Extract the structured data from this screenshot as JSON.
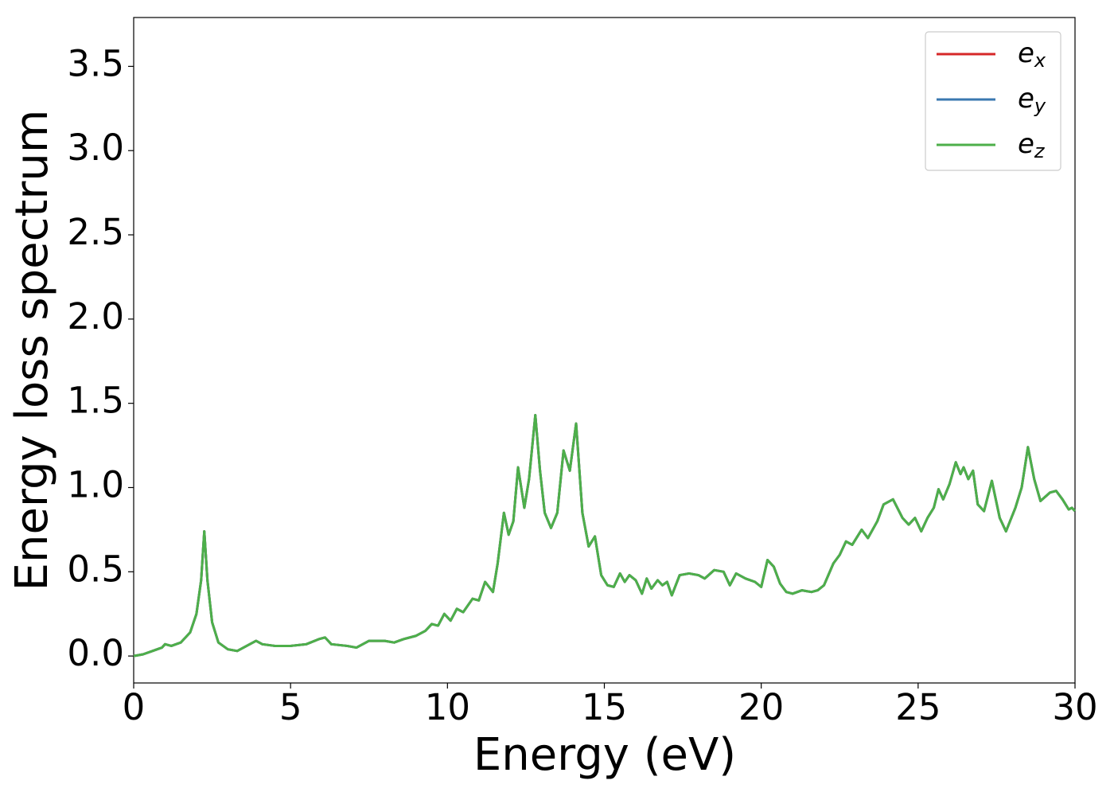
{
  "chart_data": {
    "type": "line",
    "x_label": "Energy (eV)",
    "y_label": "Energy loss spectrum",
    "xlim": [
      0,
      30
    ],
    "ylim": [
      -0.16,
      3.79
    ],
    "xticks": [
      0,
      5,
      10,
      15,
      20,
      25,
      30
    ],
    "yticks": [
      {
        "value": 0,
        "label": "0.0"
      },
      0.5,
      {
        "value": 1,
        "label": "1.0"
      },
      1.5,
      {
        "value": 2,
        "label": "2.0"
      },
      2.5,
      {
        "value": 3,
        "label": "3.0"
      },
      3.5
    ],
    "legend": "upper right",
    "x": [
      0,
      0.3,
      0.6,
      0.9,
      1.0,
      1.2,
      1.5,
      1.8,
      2.0,
      2.15,
      2.25,
      2.35,
      2.5,
      2.7,
      3.0,
      3.3,
      3.6,
      3.9,
      4.1,
      4.5,
      5.0,
      5.5,
      5.9,
      6.1,
      6.3,
      6.8,
      7.1,
      7.5,
      8.0,
      8.3,
      8.6,
      9.0,
      9.3,
      9.5,
      9.7,
      9.9,
      10.1,
      10.3,
      10.5,
      10.8,
      11.0,
      11.2,
      11.45,
      11.6,
      11.8,
      11.95,
      12.1,
      12.25,
      12.45,
      12.6,
      12.8,
      12.95,
      13.1,
      13.3,
      13.5,
      13.7,
      13.9,
      14.1,
      14.3,
      14.5,
      14.7,
      14.9,
      15.1,
      15.3,
      15.5,
      15.65,
      15.8,
      16.0,
      16.2,
      16.35,
      16.5,
      16.7,
      16.85,
      17.0,
      17.15,
      17.4,
      17.7,
      18.0,
      18.2,
      18.5,
      18.8,
      19.0,
      19.2,
      19.5,
      19.8,
      20.0,
      20.2,
      20.4,
      20.6,
      20.8,
      21.0,
      21.3,
      21.6,
      21.8,
      22.0,
      22.3,
      22.5,
      22.7,
      22.9,
      23.2,
      23.4,
      23.7,
      23.9,
      24.2,
      24.5,
      24.7,
      24.9,
      25.1,
      25.3,
      25.5,
      25.65,
      25.8,
      26.0,
      26.2,
      26.35,
      26.45,
      26.6,
      26.75,
      26.9,
      27.1,
      27.35,
      27.6,
      27.8,
      28.1,
      28.3,
      28.5,
      28.7,
      28.9,
      29.2,
      29.4,
      29.6,
      29.8,
      29.9,
      30.0
    ],
    "series": [
      {
        "name": "ex",
        "color": "#d62728",
        "values": [
          0.0,
          0.01,
          0.03,
          0.05,
          0.07,
          0.06,
          0.08,
          0.14,
          0.25,
          0.45,
          0.74,
          0.45,
          0.2,
          0.08,
          0.04,
          0.03,
          0.06,
          0.09,
          0.07,
          0.06,
          0.06,
          0.07,
          0.1,
          0.11,
          0.07,
          0.06,
          0.05,
          0.09,
          0.09,
          0.08,
          0.1,
          0.12,
          0.15,
          0.19,
          0.18,
          0.25,
          0.21,
          0.28,
          0.26,
          0.34,
          0.33,
          0.44,
          0.38,
          0.55,
          0.85,
          0.72,
          0.8,
          1.12,
          0.88,
          1.05,
          1.43,
          1.1,
          0.85,
          0.76,
          0.85,
          1.22,
          1.1,
          1.38,
          0.85,
          0.65,
          0.71,
          0.48,
          0.42,
          0.41,
          0.49,
          0.44,
          0.48,
          0.45,
          0.37,
          0.46,
          0.4,
          0.45,
          0.42,
          0.44,
          0.36,
          0.48,
          0.49,
          0.48,
          0.46,
          0.51,
          0.5,
          0.42,
          0.49,
          0.46,
          0.44,
          0.41,
          0.57,
          0.53,
          0.43,
          0.38,
          0.37,
          0.39,
          0.38,
          0.39,
          0.42,
          0.55,
          0.6,
          0.68,
          0.66,
          0.75,
          0.7,
          0.8,
          0.9,
          0.93,
          0.82,
          0.78,
          0.82,
          0.74,
          0.82,
          0.88,
          0.99,
          0.93,
          1.02,
          1.15,
          1.08,
          1.12,
          1.05,
          1.1,
          0.9,
          0.86,
          1.04,
          0.82,
          0.74,
          0.88,
          1.0,
          1.24,
          1.05,
          0.92,
          0.97,
          0.98,
          0.93,
          0.87,
          0.88,
          0.86
        ]
      },
      {
        "name": "ey",
        "color": "#3a78b0",
        "values": [
          0.0,
          0.01,
          0.03,
          0.05,
          0.07,
          0.06,
          0.08,
          0.14,
          0.25,
          0.45,
          0.74,
          0.45,
          0.2,
          0.08,
          0.04,
          0.03,
          0.06,
          0.09,
          0.07,
          0.06,
          0.06,
          0.07,
          0.1,
          0.11,
          0.07,
          0.06,
          0.05,
          0.09,
          0.09,
          0.08,
          0.1,
          0.12,
          0.15,
          0.19,
          0.18,
          0.25,
          0.21,
          0.28,
          0.26,
          0.34,
          0.33,
          0.44,
          0.38,
          0.55,
          0.85,
          0.72,
          0.8,
          1.12,
          0.88,
          1.05,
          1.43,
          1.1,
          0.85,
          0.76,
          0.85,
          1.22,
          1.1,
          1.38,
          0.85,
          0.65,
          0.71,
          0.48,
          0.42,
          0.41,
          0.49,
          0.44,
          0.48,
          0.45,
          0.37,
          0.46,
          0.4,
          0.45,
          0.42,
          0.44,
          0.36,
          0.48,
          0.49,
          0.48,
          0.46,
          0.51,
          0.5,
          0.42,
          0.49,
          0.46,
          0.44,
          0.41,
          0.57,
          0.53,
          0.43,
          0.38,
          0.37,
          0.39,
          0.38,
          0.39,
          0.42,
          0.55,
          0.6,
          0.68,
          0.66,
          0.75,
          0.7,
          0.8,
          0.9,
          0.93,
          0.82,
          0.78,
          0.82,
          0.74,
          0.82,
          0.88,
          0.99,
          0.93,
          1.02,
          1.15,
          1.08,
          1.12,
          1.05,
          1.1,
          0.9,
          0.86,
          1.04,
          0.82,
          0.74,
          0.88,
          1.0,
          1.24,
          1.05,
          0.92,
          0.97,
          0.98,
          0.93,
          0.87,
          0.88,
          0.86
        ]
      },
      {
        "name": "ez",
        "color": "#4daf4a",
        "values": [
          0.0,
          0.01,
          0.03,
          0.05,
          0.07,
          0.06,
          0.08,
          0.14,
          0.25,
          0.45,
          0.74,
          0.45,
          0.2,
          0.08,
          0.04,
          0.03,
          0.06,
          0.09,
          0.07,
          0.06,
          0.06,
          0.07,
          0.1,
          0.11,
          0.07,
          0.06,
          0.05,
          0.09,
          0.09,
          0.08,
          0.1,
          0.12,
          0.15,
          0.19,
          0.18,
          0.25,
          0.21,
          0.28,
          0.26,
          0.34,
          0.33,
          0.44,
          0.38,
          0.55,
          0.85,
          0.72,
          0.8,
          1.12,
          0.88,
          1.05,
          1.43,
          1.1,
          0.85,
          0.76,
          0.85,
          1.22,
          1.1,
          1.38,
          0.85,
          0.65,
          0.71,
          0.48,
          0.42,
          0.41,
          0.49,
          0.44,
          0.48,
          0.45,
          0.37,
          0.46,
          0.4,
          0.45,
          0.42,
          0.44,
          0.36,
          0.48,
          0.49,
          0.48,
          0.46,
          0.51,
          0.5,
          0.42,
          0.49,
          0.46,
          0.44,
          0.41,
          0.57,
          0.53,
          0.43,
          0.38,
          0.37,
          0.39,
          0.38,
          0.39,
          0.42,
          0.55,
          0.6,
          0.68,
          0.66,
          0.75,
          0.7,
          0.8,
          0.9,
          0.93,
          0.82,
          0.78,
          0.82,
          0.74,
          0.82,
          0.88,
          0.99,
          0.93,
          1.02,
          1.15,
          1.08,
          1.12,
          1.05,
          1.1,
          0.9,
          0.86,
          1.04,
          0.82,
          0.74,
          0.88,
          1.0,
          1.24,
          1.05,
          0.92,
          0.97,
          0.98,
          0.93,
          0.87,
          0.88,
          0.86
        ]
      }
    ]
  }
}
